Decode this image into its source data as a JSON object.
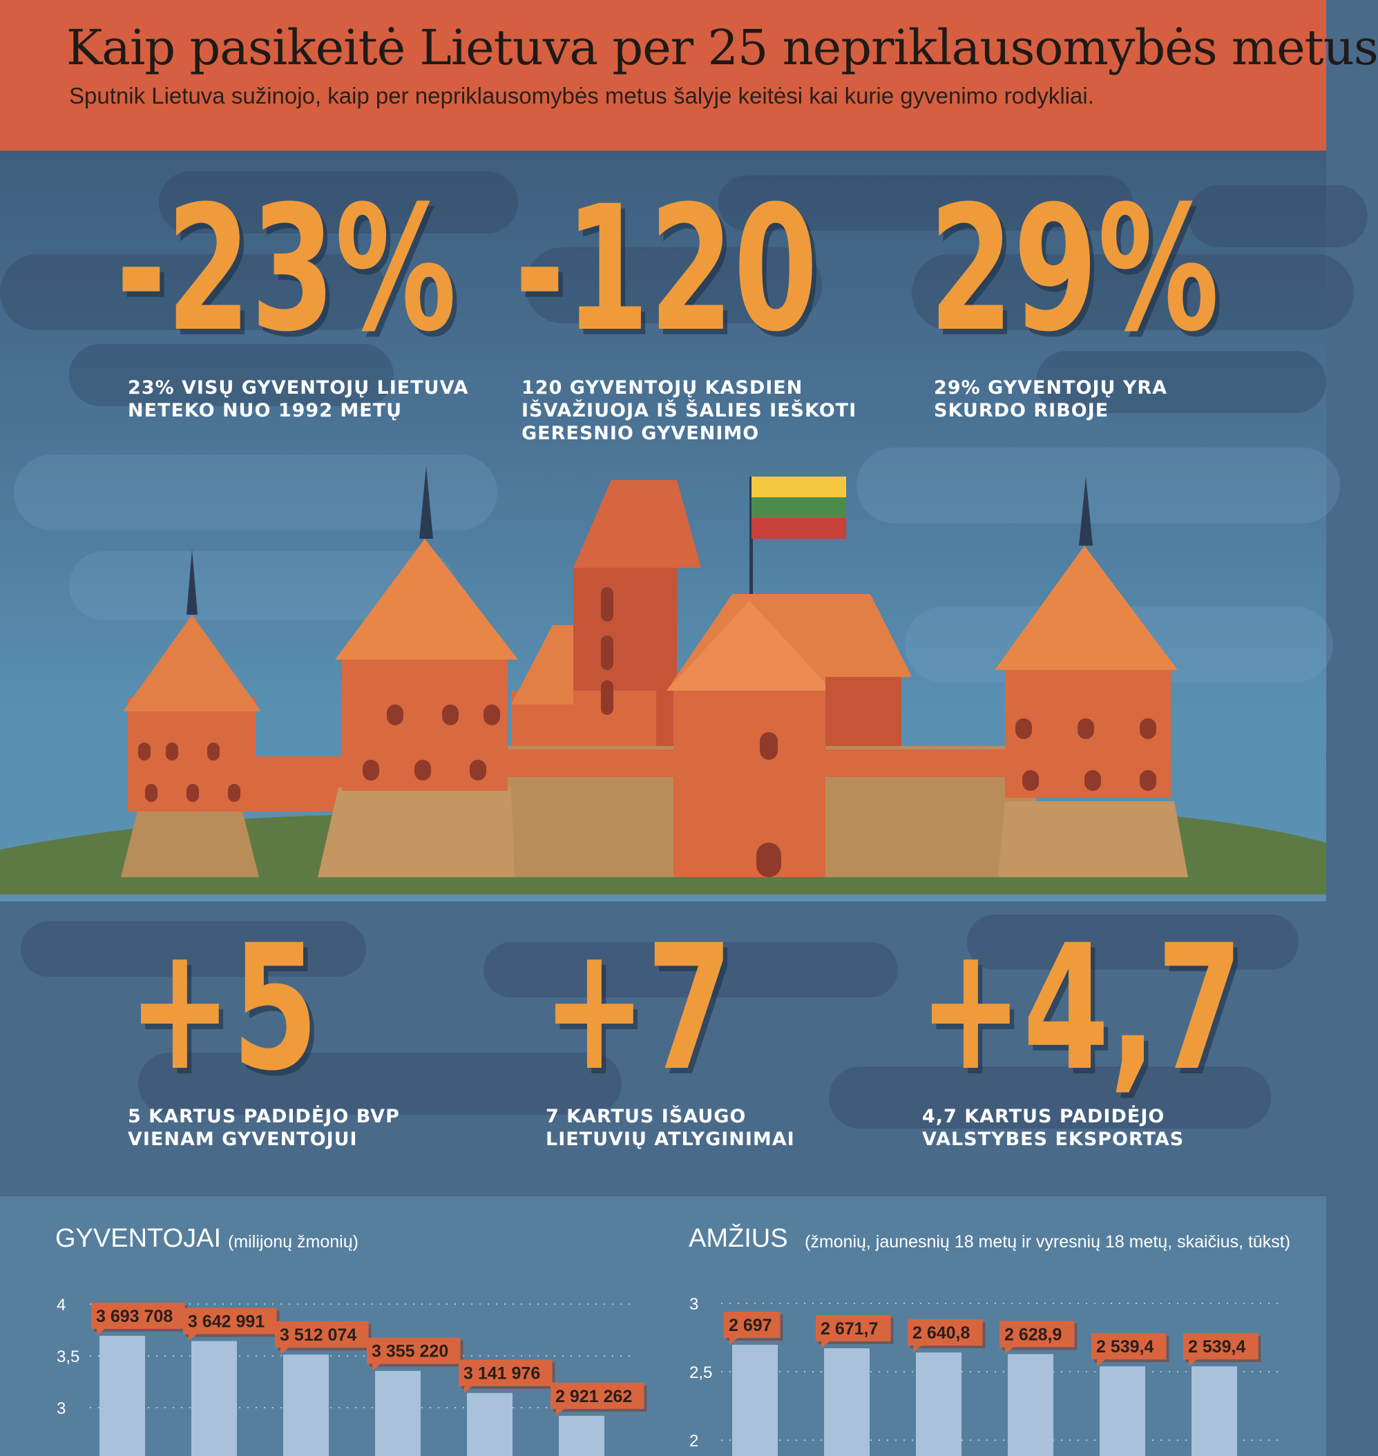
{
  "header": {
    "title": "Kaip pasikeitė Lietuva per 25 nepriklausomybės metus",
    "subtitle": "Sputnik Lietuva sužinojo, kaip per nepriklausomybės metus šalyje keitėsi kai kurie gyvenimo rodykliai."
  },
  "stats_top": [
    {
      "value": "-23%",
      "label": [
        "23% VISŲ GYVENTOJŲ LIETUVA",
        "NETEKO NUO 1992 METŲ"
      ]
    },
    {
      "value": "-120",
      "label": [
        "120 GYVENTOJŲ KASDIEN",
        "IŠVAŽIUOJA IŠ ŠALIES IEŠKOTI",
        "GERESNIO GYVENIMO"
      ]
    },
    {
      "value": "29%",
      "label": [
        "29% GYVENTOJŲ YRA",
        "SKURDO RIBOJE"
      ]
    }
  ],
  "stats_bottom": [
    {
      "value": "+5",
      "label": [
        "5 KARTUS PADIDĖJO BVP",
        "VIENAM GYVENTOJUI"
      ]
    },
    {
      "value": "+7",
      "label": [
        "7 KARTUS IŠAUGO",
        "LIETUVIŲ ATLYGINIMAI"
      ]
    },
    {
      "value": "+4,7",
      "label": [
        "4,7 KARTUS PADIDĖJO",
        "VALSTYBES EKSPORTAS"
      ]
    }
  ],
  "colors": {
    "header": "#d55f40",
    "accent_orange": "#ef9b3c",
    "bar_fill": "#a9c1da",
    "label_box": "#d9653f",
    "flag_yellow": "#f5c842",
    "flag_green": "#4c8c4a",
    "flag_red": "#c8413a"
  },
  "chart_data": [
    {
      "type": "bar",
      "title": "GYVENTOJAI",
      "subtitle": "(milijonų žmonių)",
      "values": [
        3.693708,
        3.642991,
        3.512074,
        3.35522,
        3.141976,
        2.921262
      ],
      "data_labels": [
        "3 693 708",
        "3 642 991",
        "3 512 074",
        "3 355 220",
        "3 141 976",
        "2 921 262"
      ],
      "yticks": [
        "4",
        "3,5",
        "3"
      ],
      "ytick_values": [
        4,
        3.5,
        3
      ],
      "ylim": [
        2.5,
        4
      ],
      "grid": true
    },
    {
      "type": "bar",
      "title": "AMŽIUS",
      "subtitle": "(žmonių, jaunesnių 18 metų ir vyresnių 18 metų, skaičius, tūkst)",
      "values": [
        2.697,
        2.6717,
        2.6408,
        2.6289,
        2.5394,
        2.5394
      ],
      "data_labels": [
        "2 697",
        "2 671,7",
        "2 640,8",
        "2 628,9",
        "2 539,4",
        "2 539,4"
      ],
      "yticks": [
        "3",
        "2,5",
        "2"
      ],
      "ytick_values": [
        3,
        2.5,
        2
      ],
      "ylim": [
        2,
        3
      ],
      "grid": true
    }
  ]
}
